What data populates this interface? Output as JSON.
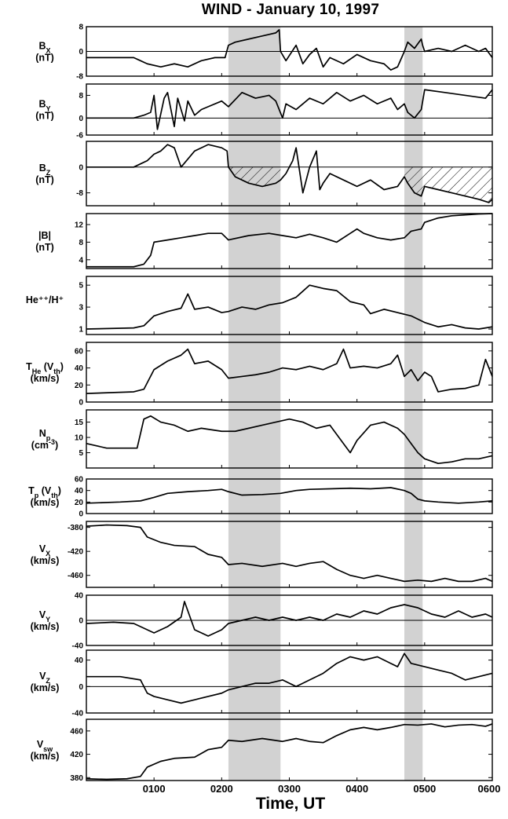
{
  "title": "WIND  -  January 10, 1997",
  "xlabel": "Time, UT",
  "chart_data": {
    "type": "line",
    "title": "WIND  -  January 10, 1997",
    "xlabel": "Time, UT",
    "x_axis": {
      "ticks": [
        "0100",
        "0200",
        "0300",
        "0400",
        "0500",
        "0600"
      ],
      "tick_hours": [
        1,
        2,
        3,
        4,
        5,
        6
      ],
      "xlim_hours": [
        0,
        6
      ]
    },
    "shaded_intervals_hours": [
      [
        2.1,
        2.87
      ],
      [
        4.7,
        4.97
      ]
    ],
    "hatched_panel": "bz",
    "panels": [
      {
        "id": "bx",
        "label": [
          "B",
          "X",
          "(nT)"
        ],
        "ylim": [
          -8,
          8
        ],
        "yticks": [
          "8",
          "0",
          "-8"
        ],
        "ytick_values": [
          8,
          0,
          -8
        ],
        "zero_line": true,
        "x": [
          0,
          0.7,
          0.8,
          0.9,
          1.1,
          1.3,
          1.5,
          1.7,
          1.9,
          2.05,
          2.1,
          2.2,
          2.4,
          2.6,
          2.8,
          2.85,
          2.87,
          2.95,
          3.1,
          3.2,
          3.3,
          3.4,
          3.5,
          3.6,
          3.8,
          4.0,
          4.2,
          4.4,
          4.5,
          4.6,
          4.7,
          4.75,
          4.85,
          4.95,
          4.97,
          5.0,
          5.2,
          5.4,
          5.6,
          5.8,
          5.9,
          6.0
        ],
        "y": [
          -2,
          -2,
          -3,
          -4,
          -5,
          -4,
          -5,
          -3,
          -2,
          -2,
          2,
          3,
          4,
          5,
          6,
          7,
          0,
          -3,
          2,
          -4,
          -1,
          1,
          -5,
          -2,
          -4,
          -1,
          -3,
          -4,
          -6,
          -5,
          0,
          3,
          1,
          4,
          2,
          0,
          1,
          0,
          2,
          0,
          1,
          -2
        ]
      },
      {
        "id": "by",
        "label": [
          "B",
          "Y",
          "(nT)"
        ],
        "ylim": [
          -6,
          12
        ],
        "yticks": [
          "8",
          "0",
          "-6"
        ],
        "ytick_values": [
          8,
          0,
          -6
        ],
        "zero_line": true,
        "x": [
          0,
          0.7,
          0.85,
          0.95,
          1.0,
          1.05,
          1.15,
          1.2,
          1.3,
          1.35,
          1.45,
          1.5,
          1.6,
          1.7,
          1.8,
          2.0,
          2.1,
          2.3,
          2.5,
          2.7,
          2.8,
          2.85,
          2.9,
          2.95,
          3.1,
          3.3,
          3.5,
          3.7,
          3.9,
          4.1,
          4.3,
          4.5,
          4.6,
          4.7,
          4.75,
          4.85,
          4.95,
          5.0,
          5.3,
          5.6,
          5.9,
          6.0
        ],
        "y": [
          0,
          0,
          1,
          2,
          8,
          -4,
          7,
          9,
          -3,
          7,
          -1,
          6,
          1,
          3,
          4,
          6,
          4,
          9,
          7,
          8,
          6,
          3,
          0,
          5,
          3,
          7,
          5,
          9,
          6,
          8,
          5,
          7,
          3,
          5,
          2,
          0,
          3,
          10,
          9,
          8,
          7,
          10
        ]
      },
      {
        "id": "bz",
        "label": [
          "B",
          "Z",
          "(nT)"
        ],
        "ylim": [
          -12,
          8
        ],
        "yticks": [
          "0",
          "-8"
        ],
        "ytick_values": [
          0,
          -8
        ],
        "zero_line": true,
        "x": [
          0,
          0.7,
          0.8,
          0.9,
          1.0,
          1.1,
          1.2,
          1.3,
          1.4,
          1.6,
          1.8,
          2.0,
          2.08,
          2.1,
          2.2,
          2.4,
          2.6,
          2.8,
          2.87,
          2.95,
          3.05,
          3.1,
          3.2,
          3.3,
          3.4,
          3.45,
          3.5,
          3.6,
          3.8,
          4.0,
          4.2,
          4.4,
          4.6,
          4.7,
          4.75,
          4.85,
          4.95,
          5.0,
          5.2,
          5.4,
          5.6,
          5.8,
          5.95,
          6.0
        ],
        "y": [
          0,
          0,
          1,
          2,
          4,
          5,
          7,
          6,
          0,
          5,
          7,
          6,
          5,
          0,
          -3,
          -5,
          -6,
          -5,
          -4,
          -2,
          2,
          6,
          -8,
          0,
          5,
          -7,
          -5,
          -2,
          -4,
          -6,
          -4,
          -7,
          -6,
          -3,
          -5,
          -8,
          -9,
          -6,
          -7,
          -8,
          -9,
          -10,
          -11,
          -10
        ]
      },
      {
        "id": "bmag",
        "label": [
          "|B|",
          "",
          "(nT)"
        ],
        "ylim": [
          2,
          14.5
        ],
        "yticks": [
          "12",
          "8",
          "4"
        ],
        "ytick_values": [
          12,
          8,
          4
        ],
        "zero_line": false,
        "x": [
          0,
          0.7,
          0.85,
          0.95,
          1.0,
          1.2,
          1.4,
          1.6,
          1.8,
          2.0,
          2.1,
          2.4,
          2.7,
          2.9,
          3.1,
          3.3,
          3.5,
          3.7,
          3.9,
          4.0,
          4.1,
          4.3,
          4.5,
          4.7,
          4.8,
          4.95,
          5.0,
          5.2,
          5.4,
          5.6,
          5.8,
          6.0
        ],
        "y": [
          2.4,
          2.4,
          3,
          5,
          8,
          8.5,
          9,
          9.5,
          10,
          10,
          8.5,
          9.5,
          10,
          9.5,
          9,
          9.8,
          9,
          8,
          10,
          11,
          10,
          9,
          8.5,
          9,
          10.5,
          11,
          12.5,
          13.5,
          14,
          14.2,
          14.4,
          14.5
        ]
      },
      {
        "id": "he",
        "label": [
          "He⁺⁺/H⁺",
          "",
          ""
        ],
        "ylim": [
          0.5,
          5.8
        ],
        "yticks": [
          "5",
          "3",
          "1"
        ],
        "ytick_values": [
          5,
          3,
          1
        ],
        "zero_line": false,
        "x": [
          0,
          0.7,
          0.85,
          1.0,
          1.2,
          1.4,
          1.5,
          1.6,
          1.8,
          2.0,
          2.1,
          2.3,
          2.5,
          2.7,
          2.9,
          3.1,
          3.3,
          3.5,
          3.7,
          3.9,
          4.1,
          4.2,
          4.4,
          4.6,
          4.8,
          5.0,
          5.2,
          5.4,
          5.6,
          5.8,
          6.0
        ],
        "y": [
          1,
          1.1,
          1.3,
          2.2,
          2.6,
          2.9,
          4.2,
          2.8,
          3,
          2.5,
          2.6,
          3,
          2.8,
          3.2,
          3.4,
          3.9,
          5,
          4.7,
          4.5,
          3.5,
          3.2,
          2.4,
          2.8,
          2.5,
          2.2,
          1.6,
          1.2,
          1.4,
          1.1,
          1.0,
          1.2
        ]
      },
      {
        "id": "the",
        "label": [
          "T",
          "He",
          " (V",
          "th",
          ")",
          "(km/s)"
        ],
        "ylim": [
          0,
          70
        ],
        "yticks": [
          "60",
          "40",
          "20",
          "0"
        ],
        "ytick_values": [
          60,
          40,
          20,
          0
        ],
        "zero_line": false,
        "x": [
          0,
          0.7,
          0.85,
          1.0,
          1.2,
          1.4,
          1.5,
          1.6,
          1.8,
          2.0,
          2.1,
          2.3,
          2.5,
          2.7,
          2.9,
          3.1,
          3.3,
          3.5,
          3.7,
          3.8,
          3.9,
          4.1,
          4.3,
          4.5,
          4.6,
          4.7,
          4.8,
          4.9,
          5.0,
          5.1,
          5.2,
          5.4,
          5.6,
          5.7,
          5.8,
          5.9,
          6.0
        ],
        "y": [
          10,
          12,
          15,
          38,
          48,
          55,
          62,
          45,
          48,
          38,
          28,
          30,
          32,
          35,
          40,
          38,
          42,
          38,
          45,
          62,
          40,
          42,
          40,
          45,
          55,
          30,
          38,
          25,
          35,
          30,
          12,
          15,
          16,
          18,
          20,
          50,
          30
        ]
      },
      {
        "id": "np",
        "label": [
          "N",
          "p",
          "(cm",
          "-3",
          ")"
        ],
        "ylim": [
          0,
          19
        ],
        "yticks": [
          "15",
          "10",
          "5"
        ],
        "ytick_values": [
          15,
          10,
          5
        ],
        "zero_line": false,
        "x": [
          0,
          0.3,
          0.6,
          0.75,
          0.85,
          0.95,
          1.1,
          1.3,
          1.5,
          1.7,
          2.0,
          2.2,
          2.4,
          2.6,
          2.8,
          3.0,
          3.2,
          3.4,
          3.6,
          3.8,
          3.9,
          4.0,
          4.2,
          4.4,
          4.6,
          4.7,
          4.8,
          4.9,
          5.0,
          5.2,
          5.4,
          5.6,
          5.8,
          6.0
        ],
        "y": [
          8,
          6.5,
          6.5,
          6.5,
          16,
          17,
          15,
          14,
          12,
          13,
          12,
          12,
          13,
          14,
          15,
          16,
          15,
          13,
          14,
          8,
          5,
          9,
          14,
          15,
          13,
          11,
          8,
          5,
          3,
          1.5,
          2,
          3,
          3,
          4
        ]
      },
      {
        "id": "tp",
        "label": [
          "T",
          "p",
          " (V",
          "th",
          ")",
          "(km/s)"
        ],
        "ylim": [
          0,
          60
        ],
        "yticks": [
          "60",
          "40",
          "20",
          "0"
        ],
        "ytick_values": [
          60,
          40,
          20,
          0
        ],
        "zero_line": false,
        "x": [
          0,
          0.5,
          0.8,
          1.0,
          1.2,
          1.5,
          1.8,
          2.0,
          2.1,
          2.3,
          2.6,
          2.87,
          3.1,
          3.3,
          3.6,
          3.9,
          4.2,
          4.5,
          4.7,
          4.8,
          4.9,
          5.0,
          5.2,
          5.5,
          5.8,
          6.0
        ],
        "y": [
          18,
          20,
          22,
          28,
          35,
          38,
          40,
          42,
          38,
          32,
          33,
          35,
          40,
          42,
          43,
          44,
          43,
          45,
          40,
          35,
          25,
          22,
          20,
          18,
          20,
          22
        ]
      },
      {
        "id": "vx",
        "label": [
          "V",
          "X",
          "(km/s)"
        ],
        "ylim": [
          -480,
          -370
        ],
        "yticks": [
          "-380",
          "-420",
          "-460"
        ],
        "ytick_values": [
          -380,
          -420,
          -460
        ],
        "zero_line": false,
        "x": [
          0,
          0.3,
          0.6,
          0.8,
          0.9,
          1.1,
          1.3,
          1.6,
          1.8,
          2.0,
          2.1,
          2.3,
          2.6,
          2.9,
          3.1,
          3.3,
          3.5,
          3.7,
          3.9,
          4.1,
          4.3,
          4.5,
          4.7,
          4.9,
          5.1,
          5.3,
          5.5,
          5.7,
          5.9,
          6.0
        ],
        "y": [
          -378,
          -376,
          -377,
          -380,
          -396,
          -405,
          -410,
          -412,
          -425,
          -430,
          -442,
          -440,
          -445,
          -440,
          -445,
          -440,
          -437,
          -450,
          -460,
          -465,
          -460,
          -465,
          -470,
          -468,
          -470,
          -465,
          -470,
          -470,
          -465,
          -470
        ]
      },
      {
        "id": "vy",
        "label": [
          "V",
          "Y",
          "(km/s)"
        ],
        "ylim": [
          -40,
          40
        ],
        "yticks": [
          "40",
          "0",
          "-40"
        ],
        "ytick_values": [
          40,
          0,
          -40
        ],
        "zero_line": true,
        "x": [
          0,
          0.4,
          0.7,
          0.9,
          1.0,
          1.2,
          1.4,
          1.45,
          1.6,
          1.8,
          2.0,
          2.1,
          2.3,
          2.5,
          2.7,
          2.9,
          3.1,
          3.3,
          3.5,
          3.7,
          3.9,
          4.1,
          4.3,
          4.5,
          4.7,
          4.9,
          5.1,
          5.3,
          5.5,
          5.7,
          5.9,
          6.0
        ],
        "y": [
          -5,
          -3,
          -5,
          -15,
          -20,
          -10,
          5,
          30,
          -15,
          -25,
          -15,
          -5,
          0,
          5,
          0,
          5,
          0,
          5,
          0,
          10,
          5,
          15,
          10,
          20,
          25,
          20,
          10,
          5,
          15,
          5,
          10,
          5
        ]
      },
      {
        "id": "vz",
        "label": [
          "V",
          "Z",
          "(km/s)"
        ],
        "ylim": [
          -40,
          55
        ],
        "yticks": [
          "40",
          "0",
          "-40"
        ],
        "ytick_values": [
          40,
          0,
          -40
        ],
        "zero_line": true,
        "x": [
          0,
          0.5,
          0.8,
          0.9,
          1.0,
          1.2,
          1.4,
          1.6,
          1.8,
          2.0,
          2.1,
          2.3,
          2.5,
          2.7,
          2.9,
          3.1,
          3.3,
          3.5,
          3.7,
          3.9,
          4.1,
          4.3,
          4.5,
          4.6,
          4.7,
          4.8,
          5.0,
          5.2,
          5.4,
          5.6,
          5.8,
          6.0
        ],
        "y": [
          15,
          15,
          10,
          -10,
          -15,
          -20,
          -25,
          -20,
          -15,
          -10,
          -5,
          0,
          5,
          5,
          10,
          0,
          10,
          20,
          35,
          45,
          40,
          45,
          35,
          30,
          50,
          35,
          30,
          25,
          20,
          10,
          15,
          20
        ]
      },
      {
        "id": "vsw",
        "label": [
          "V",
          "sw",
          "(km/s)"
        ],
        "ylim": [
          375,
          480
        ],
        "yticks": [
          "460",
          "420",
          "380"
        ],
        "ytick_values": [
          460,
          420,
          380
        ],
        "zero_line": false,
        "x": [
          0,
          0.3,
          0.6,
          0.8,
          0.9,
          1.1,
          1.3,
          1.6,
          1.8,
          2.0,
          2.1,
          2.3,
          2.6,
          2.9,
          3.1,
          3.3,
          3.5,
          3.7,
          3.9,
          4.1,
          4.3,
          4.5,
          4.7,
          4.9,
          5.1,
          5.3,
          5.5,
          5.7,
          5.9,
          6.0
        ],
        "y": [
          378,
          377,
          378,
          382,
          398,
          408,
          413,
          415,
          428,
          432,
          444,
          442,
          447,
          442,
          447,
          442,
          440,
          452,
          462,
          466,
          462,
          466,
          471,
          470,
          472,
          467,
          470,
          471,
          468,
          472
        ]
      }
    ]
  }
}
